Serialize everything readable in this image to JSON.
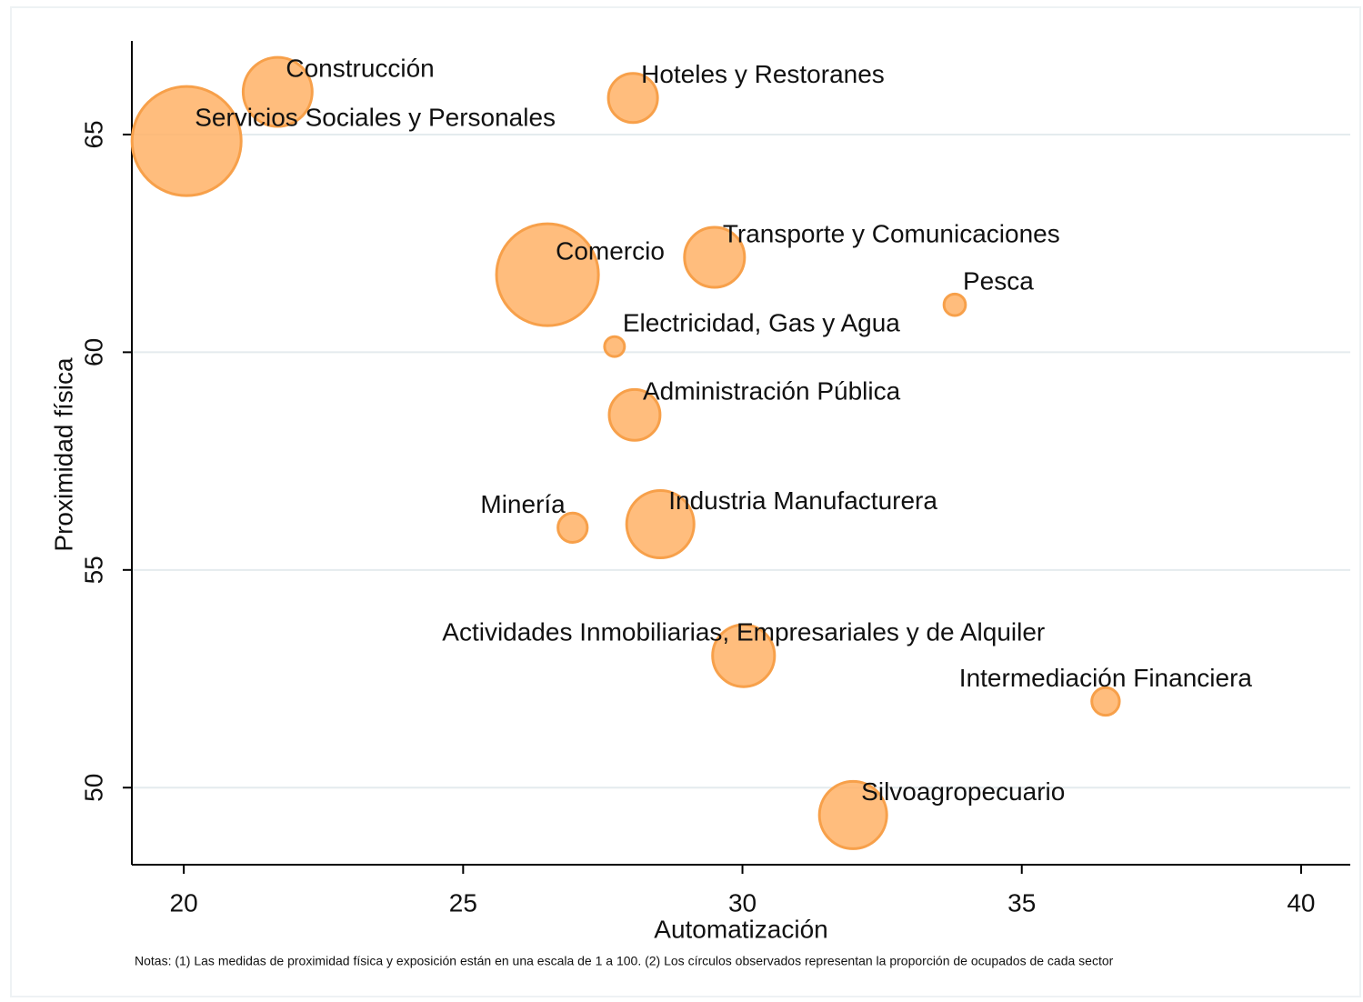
{
  "chart_data": {
    "type": "scatter",
    "x_label": "Automatización",
    "y_label": "Proximidad física",
    "note": "Notas: (1) Las medidas de proximidad física y exposición están en una escala de 1 a 100. (2) Los círculos observados representan la proporción de ocupados de cada sector",
    "color": "#ffb266",
    "edge_color": "#f7a04a",
    "grid": true,
    "xlim": [
      19.07,
      40.88
    ],
    "ylim": [
      48.23,
      67.15
    ],
    "xticks": [
      20,
      25,
      30,
      35,
      40
    ],
    "yticks": [
      50,
      55,
      60,
      65
    ],
    "labels": [
      "Servicios Sociales y Personales",
      "Construcción",
      "Hoteles y Restoranes",
      "Comercio",
      "Transporte y Comunicaciones",
      "Pesca",
      "Electricidad, Gas y Agua",
      "Administración Pública",
      "Minería",
      "Industria Manufacturera",
      "Actividades Inmobiliarias, Empresariales y de Alquiler",
      "Intermediación Financiera",
      "Silvoagropecuario"
    ],
    "x": [
      20.05,
      21.68,
      28.04,
      26.51,
      29.5,
      33.8,
      27.71,
      28.07,
      26.96,
      28.53,
      30.02,
      36.5,
      31.98
    ],
    "y": [
      64.85,
      65.98,
      65.84,
      61.78,
      62.18,
      61.09,
      60.13,
      58.56,
      55.97,
      56.05,
      53.03,
      51.98,
      49.37
    ],
    "size": [
      36,
      14.4,
      7.3,
      31.4,
      10.9,
      1.4,
      1.2,
      7.8,
      2.6,
      13.7,
      11.6,
      2.3,
      13.7
    ]
  }
}
